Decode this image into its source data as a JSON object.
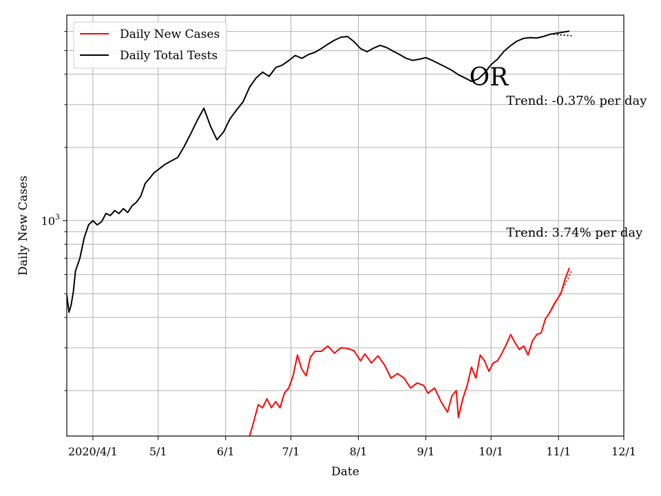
{
  "chart_data": {
    "type": "line",
    "yscale": "log",
    "grid": true,
    "legend_position": "upper-left",
    "xlabel": "Date",
    "ylabel": "Daily New Cases",
    "xlim": [
      "2020-03-20",
      "2020-12-01"
    ],
    "ylim": [
      130,
      7000
    ],
    "x_ticks": [
      {
        "date": "2020-04-01",
        "label": "2020/4/1"
      },
      {
        "date": "2020-05-01",
        "label": "5/1"
      },
      {
        "date": "2020-06-01",
        "label": "6/1"
      },
      {
        "date": "2020-07-01",
        "label": "7/1"
      },
      {
        "date": "2020-08-01",
        "label": "8/1"
      },
      {
        "date": "2020-09-01",
        "label": "9/1"
      },
      {
        "date": "2020-10-01",
        "label": "10/1"
      },
      {
        "date": "2020-11-01",
        "label": "11/1"
      },
      {
        "date": "2020-12-01",
        "label": "12/1"
      }
    ],
    "y_major_tick": {
      "value": 1000,
      "label_base": "10",
      "label_exp": "3"
    },
    "y_minor_ticks": [
      200,
      300,
      400,
      500,
      600,
      700,
      800,
      900,
      2000,
      3000,
      4000,
      5000,
      6000
    ],
    "series": [
      {
        "name": "Daily New Cases",
        "color": "#ff0000",
        "points": [
          [
            "2020-06-12",
            130
          ],
          [
            "2020-06-14",
            150
          ],
          [
            "2020-06-16",
            175
          ],
          [
            "2020-06-18",
            170
          ],
          [
            "2020-06-20",
            185
          ],
          [
            "2020-06-22",
            170
          ],
          [
            "2020-06-24",
            180
          ],
          [
            "2020-06-26",
            170
          ],
          [
            "2020-06-28",
            195
          ],
          [
            "2020-06-30",
            205
          ],
          [
            "2020-07-02",
            230
          ],
          [
            "2020-07-04",
            280
          ],
          [
            "2020-07-06",
            245
          ],
          [
            "2020-07-08",
            230
          ],
          [
            "2020-07-10",
            275
          ],
          [
            "2020-07-12",
            290
          ],
          [
            "2020-07-15",
            290
          ],
          [
            "2020-07-18",
            305
          ],
          [
            "2020-07-21",
            285
          ],
          [
            "2020-07-24",
            300
          ],
          [
            "2020-07-27",
            298
          ],
          [
            "2020-07-30",
            292
          ],
          [
            "2020-08-02",
            265
          ],
          [
            "2020-08-04",
            283
          ],
          [
            "2020-08-07",
            260
          ],
          [
            "2020-08-10",
            278
          ],
          [
            "2020-08-13",
            255
          ],
          [
            "2020-08-16",
            225
          ],
          [
            "2020-08-19",
            235
          ],
          [
            "2020-08-22",
            225
          ],
          [
            "2020-08-25",
            205
          ],
          [
            "2020-08-28",
            215
          ],
          [
            "2020-08-31",
            210
          ],
          [
            "2020-09-02",
            195
          ],
          [
            "2020-09-05",
            205
          ],
          [
            "2020-09-08",
            180
          ],
          [
            "2020-09-11",
            163
          ],
          [
            "2020-09-13",
            190
          ],
          [
            "2020-09-15",
            200
          ],
          [
            "2020-09-16",
            155
          ],
          [
            "2020-09-18",
            185
          ],
          [
            "2020-09-20",
            210
          ],
          [
            "2020-09-22",
            250
          ],
          [
            "2020-09-24",
            225
          ],
          [
            "2020-09-26",
            280
          ],
          [
            "2020-09-28",
            265
          ],
          [
            "2020-09-30",
            240
          ],
          [
            "2020-10-02",
            260
          ],
          [
            "2020-10-04",
            265
          ],
          [
            "2020-10-06",
            285
          ],
          [
            "2020-10-08",
            310
          ],
          [
            "2020-10-10",
            340
          ],
          [
            "2020-10-12",
            315
          ],
          [
            "2020-10-14",
            295
          ],
          [
            "2020-10-16",
            305
          ],
          [
            "2020-10-18",
            280
          ],
          [
            "2020-10-20",
            320
          ],
          [
            "2020-10-22",
            340
          ],
          [
            "2020-10-24",
            345
          ],
          [
            "2020-10-26",
            395
          ],
          [
            "2020-10-28",
            420
          ],
          [
            "2020-10-30",
            455
          ],
          [
            "2020-11-02",
            500
          ],
          [
            "2020-11-04",
            575
          ],
          [
            "2020-11-06",
            640
          ]
        ]
      },
      {
        "name": "Daily Total Tests",
        "color": "#000000",
        "points": [
          [
            "2020-03-20",
            495
          ],
          [
            "2020-03-21",
            420
          ],
          [
            "2020-03-22",
            450
          ],
          [
            "2020-03-23",
            510
          ],
          [
            "2020-03-24",
            620
          ],
          [
            "2020-03-26",
            700
          ],
          [
            "2020-03-28",
            850
          ],
          [
            "2020-03-30",
            960
          ],
          [
            "2020-04-01",
            1000
          ],
          [
            "2020-04-03",
            960
          ],
          [
            "2020-04-05",
            990
          ],
          [
            "2020-04-07",
            1070
          ],
          [
            "2020-04-09",
            1050
          ],
          [
            "2020-04-11",
            1100
          ],
          [
            "2020-04-13",
            1070
          ],
          [
            "2020-04-15",
            1120
          ],
          [
            "2020-04-17",
            1080
          ],
          [
            "2020-04-19",
            1150
          ],
          [
            "2020-04-21",
            1190
          ],
          [
            "2020-04-23",
            1260
          ],
          [
            "2020-04-25",
            1420
          ],
          [
            "2020-04-27",
            1490
          ],
          [
            "2020-04-29",
            1570
          ],
          [
            "2020-05-01",
            1620
          ],
          [
            "2020-05-04",
            1700
          ],
          [
            "2020-05-07",
            1760
          ],
          [
            "2020-05-10",
            1820
          ],
          [
            "2020-05-13",
            2020
          ],
          [
            "2020-05-16",
            2280
          ],
          [
            "2020-05-19",
            2590
          ],
          [
            "2020-05-22",
            2900
          ],
          [
            "2020-05-25",
            2450
          ],
          [
            "2020-05-28",
            2150
          ],
          [
            "2020-05-31",
            2310
          ],
          [
            "2020-06-03",
            2620
          ],
          [
            "2020-06-06",
            2850
          ],
          [
            "2020-06-09",
            3080
          ],
          [
            "2020-06-12",
            3540
          ],
          [
            "2020-06-15",
            3860
          ],
          [
            "2020-06-18",
            4080
          ],
          [
            "2020-06-21",
            3920
          ],
          [
            "2020-06-24",
            4260
          ],
          [
            "2020-06-27",
            4360
          ],
          [
            "2020-06-30",
            4550
          ],
          [
            "2020-07-03",
            4780
          ],
          [
            "2020-07-06",
            4650
          ],
          [
            "2020-07-09",
            4820
          ],
          [
            "2020-07-12",
            4920
          ],
          [
            "2020-07-15",
            5100
          ],
          [
            "2020-07-18",
            5320
          ],
          [
            "2020-07-21",
            5520
          ],
          [
            "2020-07-24",
            5680
          ],
          [
            "2020-07-27",
            5720
          ],
          [
            "2020-07-30",
            5450
          ],
          [
            "2020-08-02",
            5100
          ],
          [
            "2020-08-05",
            4950
          ],
          [
            "2020-08-08",
            5120
          ],
          [
            "2020-08-11",
            5260
          ],
          [
            "2020-08-14",
            5150
          ],
          [
            "2020-08-17",
            4980
          ],
          [
            "2020-08-20",
            4820
          ],
          [
            "2020-08-23",
            4650
          ],
          [
            "2020-08-26",
            4560
          ],
          [
            "2020-08-29",
            4610
          ],
          [
            "2020-09-01",
            4680
          ],
          [
            "2020-09-04",
            4560
          ],
          [
            "2020-09-07",
            4420
          ],
          [
            "2020-09-10",
            4290
          ],
          [
            "2020-09-13",
            4150
          ],
          [
            "2020-09-16",
            3980
          ],
          [
            "2020-09-19",
            3860
          ],
          [
            "2020-09-22",
            3740
          ],
          [
            "2020-09-25",
            3820
          ],
          [
            "2020-09-28",
            4050
          ],
          [
            "2020-10-01",
            4380
          ],
          [
            "2020-10-04",
            4620
          ],
          [
            "2020-10-07",
            4980
          ],
          [
            "2020-10-10",
            5250
          ],
          [
            "2020-10-13",
            5480
          ],
          [
            "2020-10-16",
            5620
          ],
          [
            "2020-10-19",
            5660
          ],
          [
            "2020-10-22",
            5640
          ],
          [
            "2020-10-25",
            5720
          ],
          [
            "2020-10-28",
            5840
          ],
          [
            "2020-10-31",
            5900
          ],
          [
            "2020-11-03",
            5960
          ],
          [
            "2020-11-06",
            6020
          ]
        ]
      }
    ],
    "trend_lines": [
      {
        "series": "Daily New Cases",
        "color": "#ff0000",
        "style": "dotted",
        "points": [
          [
            "2020-10-28",
            420
          ],
          [
            "2020-10-30",
            450
          ],
          [
            "2020-11-01",
            485
          ],
          [
            "2020-11-03",
            525
          ],
          [
            "2020-11-05",
            570
          ],
          [
            "2020-11-07",
            620
          ]
        ]
      },
      {
        "series": "Daily Total Tests",
        "color": "#000000",
        "style": "dotted",
        "points": [
          [
            "2020-10-28",
            5850
          ],
          [
            "2020-10-31",
            5830
          ],
          [
            "2020-11-03",
            5800
          ],
          [
            "2020-11-07",
            5760
          ]
        ]
      }
    ],
    "annotations": [
      {
        "text": "OR",
        "role": "state",
        "anchor": [
          "2020-09-21",
          3600
        ]
      },
      {
        "text": "Trend: -0.37% per day",
        "role": "trend-tests",
        "anchor": [
          "2020-10-08",
          3000
        ]
      },
      {
        "text": "Trend: 3.74% per day",
        "role": "trend-cases",
        "anchor": [
          "2020-10-08",
          860
        ]
      }
    ]
  }
}
